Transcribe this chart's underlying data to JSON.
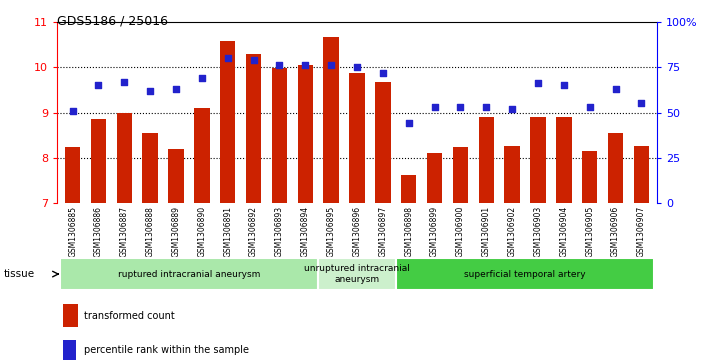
{
  "title": "GDS5186 / 25016",
  "samples": [
    "GSM1306885",
    "GSM1306886",
    "GSM1306887",
    "GSM1306888",
    "GSM1306889",
    "GSM1306890",
    "GSM1306891",
    "GSM1306892",
    "GSM1306893",
    "GSM1306894",
    "GSM1306895",
    "GSM1306896",
    "GSM1306897",
    "GSM1306898",
    "GSM1306899",
    "GSM1306900",
    "GSM1306901",
    "GSM1306902",
    "GSM1306903",
    "GSM1306904",
    "GSM1306905",
    "GSM1306906",
    "GSM1306907"
  ],
  "bar_values": [
    8.25,
    8.85,
    9.0,
    8.55,
    8.2,
    9.1,
    10.58,
    10.3,
    9.98,
    10.05,
    10.67,
    9.88,
    9.67,
    7.62,
    8.1,
    8.25,
    8.9,
    8.27,
    8.9,
    8.9,
    8.15,
    8.55,
    8.27
  ],
  "percentile_values": [
    51,
    65,
    67,
    62,
    63,
    69,
    80,
    79,
    76,
    76,
    76,
    75,
    72,
    44,
    53,
    53,
    53,
    52,
    66,
    65,
    53,
    63,
    55
  ],
  "bar_color": "#cc2200",
  "dot_color": "#2222cc",
  "ylim_left": [
    7,
    11
  ],
  "ylim_right": [
    0,
    100
  ],
  "yticks_left": [
    7,
    8,
    9,
    10,
    11
  ],
  "yticks_right": [
    0,
    25,
    50,
    75,
    100
  ],
  "grid_values": [
    8,
    9,
    10
  ],
  "groups": [
    {
      "label": "ruptured intracranial aneurysm",
      "start": 0,
      "end": 10,
      "color": "#aae8aa"
    },
    {
      "label": "unruptured intracranial\naneurysm",
      "start": 10,
      "end": 13,
      "color": "#ccf0cc"
    },
    {
      "label": "superficial temporal artery",
      "start": 13,
      "end": 23,
      "color": "#44cc44"
    }
  ],
  "legend_bar_label": "transformed count",
  "legend_dot_label": "percentile rank within the sample",
  "tissue_label": "tissue",
  "bar_width": 0.6
}
